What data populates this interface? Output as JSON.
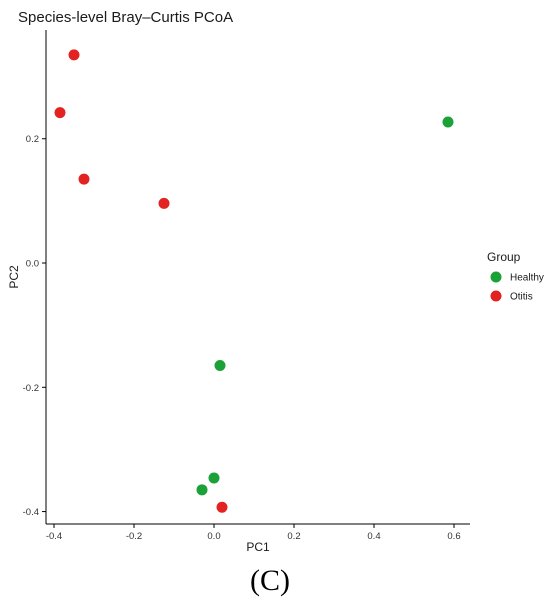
{
  "chart_data": {
    "type": "scatter",
    "title": "Species-level Bray–Curtis PCoA",
    "xlabel": "PC1",
    "ylabel": "PC2",
    "xlim": [
      -0.42,
      0.64
    ],
    "ylim": [
      -0.42,
      0.375
    ],
    "xticks": [
      -0.4,
      -0.2,
      0.0,
      0.2,
      0.4,
      0.6
    ],
    "xtick_labels": [
      "-0.4",
      "-0.2",
      "0.0",
      "0.2",
      "0.4",
      "0.6"
    ],
    "yticks": [
      -0.4,
      -0.2,
      0.0,
      0.2
    ],
    "ytick_labels": [
      "-0.4",
      "-0.2",
      "0.0",
      "0.2"
    ],
    "grid": false,
    "legend": {
      "title": "Group",
      "placement": "right"
    },
    "series": [
      {
        "name": "Healthy",
        "color": "#1aa138",
        "points": [
          {
            "x": 0.585,
            "y": 0.227
          },
          {
            "x": 0.015,
            "y": -0.165
          },
          {
            "x": 0.0,
            "y": -0.346
          },
          {
            "x": -0.03,
            "y": -0.365
          }
        ]
      },
      {
        "name": "Otitis",
        "color": "#e32222",
        "points": [
          {
            "x": -0.35,
            "y": 0.335
          },
          {
            "x": -0.385,
            "y": 0.242
          },
          {
            "x": -0.325,
            "y": 0.135
          },
          {
            "x": -0.125,
            "y": 0.096
          },
          {
            "x": 0.02,
            "y": -0.393
          }
        ]
      }
    ]
  },
  "panel_label": "(C)"
}
